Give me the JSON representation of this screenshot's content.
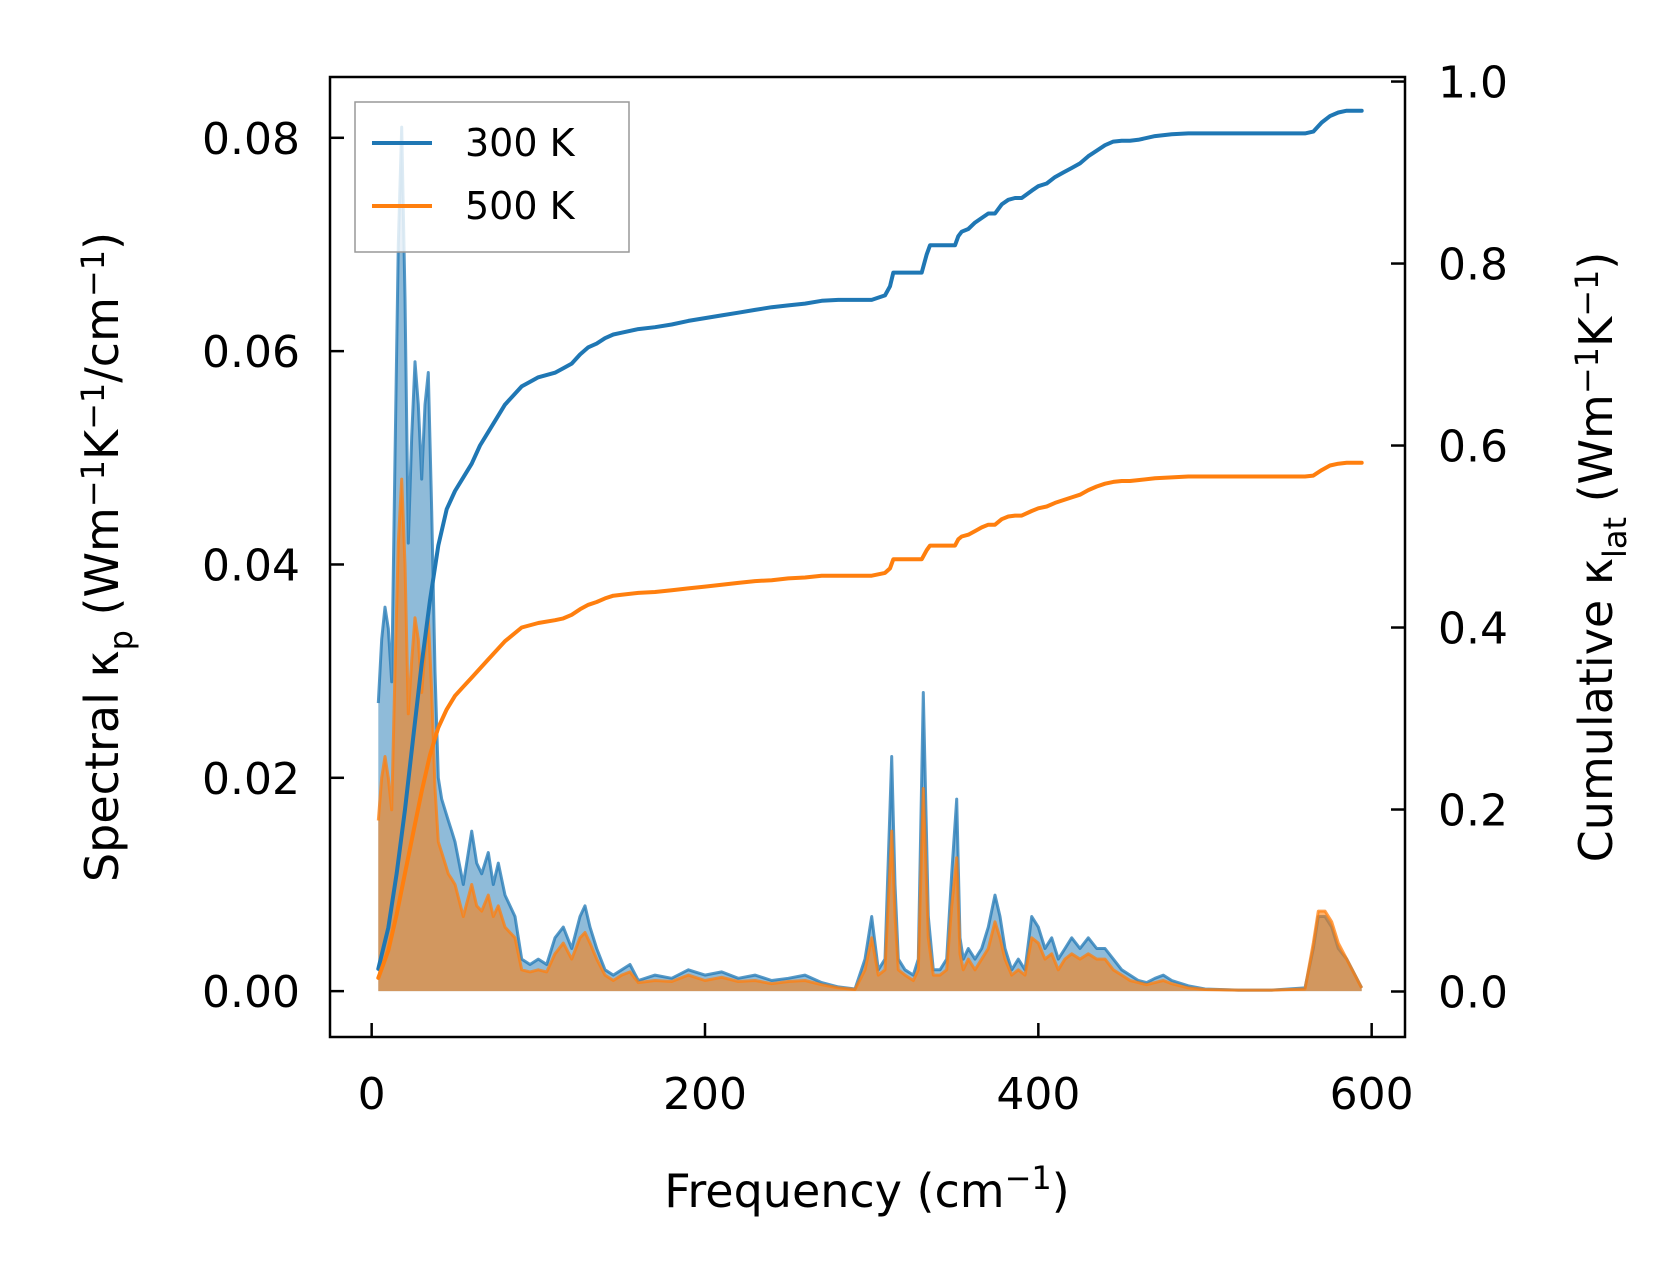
{
  "chart_data": {
    "type": "line",
    "x_axis": {
      "label_main": "Frequency (cm",
      "label_sup": "−1",
      "label_close": ")",
      "range": [
        -25,
        620
      ],
      "ticks": [
        0,
        200,
        400,
        600
      ],
      "tick_labels": [
        "0",
        "200",
        "400",
        "600"
      ]
    },
    "y_left": {
      "label_parts": [
        "Spectral κ",
        "p",
        " (Wm",
        "−1",
        "K",
        "−1",
        "/cm",
        "−1",
        ")"
      ],
      "range": [
        -0.0043,
        0.0857
      ],
      "ticks": [
        0,
        0.02,
        0.04,
        0.06,
        0.08
      ],
      "tick_labels": [
        "0.00",
        "0.02",
        "0.04",
        "0.06",
        "0.08"
      ]
    },
    "y_right": {
      "label_parts": [
        "Cumulative κ",
        "lat",
        " (Wm",
        "−1",
        "K",
        "−1",
        ")"
      ],
      "range": [
        -0.05,
        1.005
      ],
      "ticks": [
        0,
        0.2,
        0.4,
        0.6,
        0.8,
        1.0
      ],
      "tick_labels": [
        "0.0",
        "0.2",
        "0.4",
        "0.6",
        "0.8",
        "1.0"
      ]
    },
    "legend": {
      "position": "top-left",
      "entries": [
        {
          "label": "300 K",
          "color": "#1f77b4"
        },
        {
          "label": "500 K",
          "color": "#ff7f0e"
        }
      ]
    },
    "series": [
      {
        "name": "300 K spectral",
        "kind": "spectral-fill",
        "color": "#1f77b4",
        "x": [
          4,
          6,
          8,
          10,
          12,
          14,
          16,
          18,
          20,
          22,
          24,
          26,
          28,
          30,
          32,
          34,
          36,
          38,
          40,
          42,
          44,
          46,
          48,
          50,
          55,
          60,
          63,
          66,
          70,
          73,
          76,
          80,
          83,
          86,
          90,
          95,
          100,
          105,
          110,
          115,
          120,
          125,
          128,
          131,
          135,
          140,
          145,
          150,
          155,
          160,
          170,
          180,
          190,
          200,
          210,
          220,
          230,
          240,
          250,
          260,
          270,
          280,
          290,
          296,
          300,
          304,
          308,
          312,
          314,
          316,
          320,
          325,
          328,
          331,
          334,
          337,
          341,
          345,
          348,
          351,
          353,
          355,
          358,
          362,
          366,
          370,
          374,
          377,
          380,
          384,
          388,
          392,
          396,
          400,
          404,
          408,
          412,
          416,
          420,
          425,
          430,
          435,
          440,
          445,
          450,
          455,
          460,
          465,
          470,
          475,
          480,
          490,
          500,
          520,
          540,
          560,
          565,
          568,
          572,
          576,
          580,
          585,
          590,
          594
        ],
        "y": [
          0.027,
          0.033,
          0.036,
          0.034,
          0.029,
          0.05,
          0.07,
          0.081,
          0.065,
          0.042,
          0.052,
          0.059,
          0.055,
          0.048,
          0.055,
          0.058,
          0.045,
          0.03,
          0.02,
          0.018,
          0.017,
          0.016,
          0.015,
          0.014,
          0.01,
          0.015,
          0.012,
          0.011,
          0.013,
          0.01,
          0.012,
          0.009,
          0.008,
          0.007,
          0.003,
          0.0025,
          0.003,
          0.0025,
          0.005,
          0.006,
          0.004,
          0.007,
          0.008,
          0.006,
          0.004,
          0.002,
          0.0015,
          0.002,
          0.0025,
          0.001,
          0.0015,
          0.0012,
          0.002,
          0.0015,
          0.0018,
          0.0012,
          0.0015,
          0.001,
          0.0012,
          0.0015,
          0.0008,
          0.0004,
          0.0002,
          0.003,
          0.007,
          0.002,
          0.003,
          0.022,
          0.01,
          0.003,
          0.002,
          0.0015,
          0.003,
          0.028,
          0.007,
          0.002,
          0.002,
          0.003,
          0.011,
          0.018,
          0.005,
          0.003,
          0.004,
          0.003,
          0.004,
          0.006,
          0.009,
          0.007,
          0.004,
          0.002,
          0.003,
          0.002,
          0.007,
          0.006,
          0.004,
          0.005,
          0.003,
          0.004,
          0.005,
          0.004,
          0.005,
          0.004,
          0.004,
          0.003,
          0.002,
          0.0015,
          0.001,
          0.0008,
          0.0012,
          0.0015,
          0.001,
          0.0005,
          0.0002,
          0.0001,
          0.0001,
          0.0003,
          0.004,
          0.007,
          0.007,
          0.006,
          0.004,
          0.003,
          0.0015,
          0.0003
        ]
      },
      {
        "name": "500 K spectral",
        "kind": "spectral-fill",
        "color": "#ff7f0e",
        "x": [
          4,
          6,
          8,
          10,
          12,
          14,
          16,
          18,
          20,
          22,
          24,
          26,
          28,
          30,
          32,
          34,
          36,
          38,
          40,
          42,
          44,
          46,
          48,
          50,
          55,
          60,
          63,
          66,
          70,
          73,
          76,
          80,
          83,
          86,
          90,
          95,
          100,
          105,
          110,
          115,
          120,
          125,
          128,
          131,
          135,
          140,
          145,
          150,
          155,
          160,
          170,
          180,
          190,
          200,
          210,
          220,
          230,
          240,
          250,
          260,
          270,
          280,
          290,
          296,
          300,
          304,
          308,
          312,
          314,
          316,
          320,
          325,
          328,
          331,
          334,
          337,
          341,
          345,
          348,
          351,
          353,
          355,
          358,
          362,
          366,
          370,
          374,
          377,
          380,
          384,
          388,
          392,
          396,
          400,
          404,
          408,
          412,
          416,
          420,
          425,
          430,
          435,
          440,
          445,
          450,
          455,
          460,
          465,
          470,
          475,
          480,
          490,
          500,
          520,
          540,
          560,
          565,
          568,
          572,
          576,
          580,
          585,
          590,
          594
        ],
        "y": [
          0.016,
          0.02,
          0.022,
          0.02,
          0.017,
          0.03,
          0.042,
          0.048,
          0.04,
          0.026,
          0.031,
          0.035,
          0.033,
          0.028,
          0.032,
          0.035,
          0.028,
          0.019,
          0.014,
          0.013,
          0.012,
          0.011,
          0.0105,
          0.01,
          0.007,
          0.01,
          0.008,
          0.0075,
          0.009,
          0.007,
          0.008,
          0.006,
          0.0055,
          0.005,
          0.002,
          0.0018,
          0.002,
          0.0018,
          0.0035,
          0.0045,
          0.003,
          0.005,
          0.0055,
          0.0045,
          0.003,
          0.0015,
          0.001,
          0.0015,
          0.0018,
          0.0008,
          0.001,
          0.0009,
          0.0015,
          0.001,
          0.0013,
          0.0009,
          0.001,
          0.0007,
          0.0009,
          0.001,
          0.0006,
          0.0003,
          0.00015,
          0.002,
          0.005,
          0.0015,
          0.002,
          0.015,
          0.007,
          0.002,
          0.0015,
          0.001,
          0.002,
          0.019,
          0.005,
          0.0015,
          0.0015,
          0.002,
          0.008,
          0.0125,
          0.0035,
          0.002,
          0.003,
          0.002,
          0.003,
          0.004,
          0.0065,
          0.005,
          0.003,
          0.0015,
          0.002,
          0.0015,
          0.005,
          0.0045,
          0.003,
          0.0035,
          0.002,
          0.003,
          0.0035,
          0.003,
          0.0035,
          0.003,
          0.003,
          0.002,
          0.0015,
          0.001,
          0.0008,
          0.0006,
          0.0008,
          0.001,
          0.0007,
          0.0003,
          0.00015,
          0.0001,
          0.0001,
          0.0002,
          0.0045,
          0.0075,
          0.0075,
          0.0065,
          0.0045,
          0.003,
          0.0015,
          0.0003
        ]
      },
      {
        "name": "300 K cumulative",
        "kind": "cumulative-line",
        "color": "#1f77b4",
        "x": [
          4,
          10,
          15,
          20,
          25,
          30,
          35,
          40,
          45,
          50,
          55,
          60,
          65,
          70,
          80,
          90,
          100,
          110,
          115,
          120,
          125,
          130,
          135,
          140,
          145,
          150,
          160,
          170,
          180,
          190,
          200,
          210,
          220,
          230,
          240,
          250,
          260,
          270,
          280,
          290,
          300,
          308,
          311,
          313,
          316,
          320,
          325,
          330,
          333,
          335,
          340,
          345,
          350,
          352,
          354,
          358,
          362,
          366,
          370,
          374,
          378,
          382,
          386,
          390,
          396,
          400,
          405,
          410,
          415,
          420,
          425,
          430,
          435,
          440,
          445,
          450,
          455,
          460,
          470,
          480,
          490,
          500,
          520,
          540,
          560,
          565,
          570,
          575,
          580,
          585,
          590,
          594
        ],
        "y": [
          0.025,
          0.07,
          0.13,
          0.2,
          0.28,
          0.36,
          0.43,
          0.49,
          0.53,
          0.55,
          0.565,
          0.58,
          0.6,
          0.615,
          0.645,
          0.665,
          0.675,
          0.68,
          0.685,
          0.69,
          0.7,
          0.708,
          0.712,
          0.718,
          0.722,
          0.724,
          0.728,
          0.73,
          0.733,
          0.737,
          0.74,
          0.743,
          0.746,
          0.749,
          0.752,
          0.754,
          0.756,
          0.759,
          0.76,
          0.76,
          0.76,
          0.765,
          0.775,
          0.79,
          0.79,
          0.79,
          0.79,
          0.79,
          0.81,
          0.82,
          0.82,
          0.82,
          0.82,
          0.83,
          0.835,
          0.838,
          0.845,
          0.85,
          0.855,
          0.855,
          0.865,
          0.87,
          0.872,
          0.872,
          0.88,
          0.885,
          0.888,
          0.895,
          0.9,
          0.905,
          0.91,
          0.918,
          0.924,
          0.93,
          0.934,
          0.935,
          0.935,
          0.936,
          0.94,
          0.942,
          0.943,
          0.943,
          0.943,
          0.943,
          0.943,
          0.945,
          0.955,
          0.962,
          0.966,
          0.968,
          0.968,
          0.968
        ]
      },
      {
        "name": "500 K cumulative",
        "kind": "cumulative-line",
        "color": "#ff7f0e",
        "x": [
          4,
          10,
          15,
          20,
          25,
          30,
          35,
          40,
          45,
          50,
          55,
          60,
          65,
          70,
          80,
          90,
          100,
          110,
          115,
          120,
          125,
          130,
          135,
          140,
          145,
          150,
          160,
          170,
          180,
          190,
          200,
          210,
          220,
          230,
          240,
          250,
          260,
          270,
          280,
          290,
          300,
          308,
          311,
          313,
          316,
          320,
          325,
          330,
          333,
          335,
          340,
          345,
          350,
          352,
          354,
          358,
          362,
          366,
          370,
          374,
          378,
          382,
          386,
          390,
          396,
          400,
          405,
          410,
          415,
          420,
          425,
          430,
          435,
          440,
          445,
          450,
          455,
          460,
          470,
          480,
          490,
          500,
          520,
          540,
          560,
          565,
          570,
          575,
          580,
          585,
          590,
          594
        ],
        "y": [
          0.015,
          0.045,
          0.085,
          0.13,
          0.175,
          0.22,
          0.26,
          0.29,
          0.31,
          0.325,
          0.335,
          0.345,
          0.355,
          0.365,
          0.385,
          0.4,
          0.405,
          0.408,
          0.41,
          0.414,
          0.42,
          0.425,
          0.428,
          0.432,
          0.435,
          0.436,
          0.438,
          0.439,
          0.441,
          0.443,
          0.445,
          0.447,
          0.449,
          0.451,
          0.452,
          0.454,
          0.455,
          0.457,
          0.457,
          0.457,
          0.457,
          0.46,
          0.465,
          0.475,
          0.475,
          0.475,
          0.475,
          0.475,
          0.485,
          0.49,
          0.49,
          0.49,
          0.49,
          0.497,
          0.5,
          0.502,
          0.506,
          0.51,
          0.513,
          0.513,
          0.519,
          0.522,
          0.523,
          0.523,
          0.528,
          0.531,
          0.533,
          0.537,
          0.54,
          0.543,
          0.546,
          0.551,
          0.555,
          0.558,
          0.56,
          0.561,
          0.561,
          0.562,
          0.564,
          0.565,
          0.566,
          0.566,
          0.566,
          0.566,
          0.566,
          0.567,
          0.573,
          0.578,
          0.58,
          0.581,
          0.581,
          0.581
        ]
      }
    ]
  }
}
